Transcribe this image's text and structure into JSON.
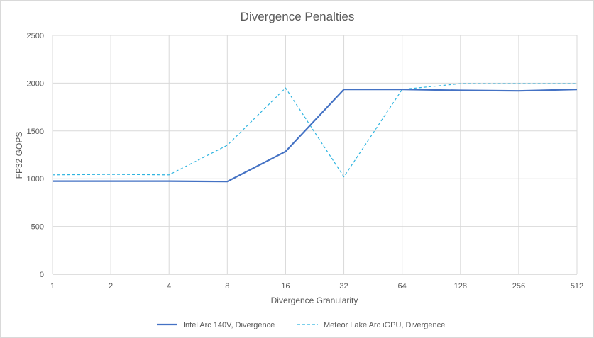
{
  "chart_data": {
    "type": "line",
    "title": "Divergence Penalties",
    "xlabel": "Divergence Granularity",
    "ylabel": "FP32 GOPS",
    "categories": [
      "1",
      "2",
      "4",
      "8",
      "16",
      "32",
      "64",
      "128",
      "256",
      "512"
    ],
    "ylim": [
      0,
      2500
    ],
    "yticks": [
      "0",
      "500",
      "1000",
      "1500",
      "2000",
      "2500"
    ],
    "grid": "on",
    "legend_position": "bottom",
    "series": [
      {
        "name": "Intel Arc 140V, Divergence",
        "values": [
          975,
          975,
          975,
          970,
          1285,
          1935,
          1935,
          1925,
          1920,
          1935
        ],
        "color": "#4472c4",
        "style": "solid"
      },
      {
        "name": "Meteor Lake Arc iGPU, Divergence",
        "values": [
          1040,
          1045,
          1040,
          1350,
          1950,
          1020,
          1935,
          1995,
          1995,
          1995
        ],
        "color": "#2eb4e0",
        "style": "dashed"
      }
    ]
  }
}
